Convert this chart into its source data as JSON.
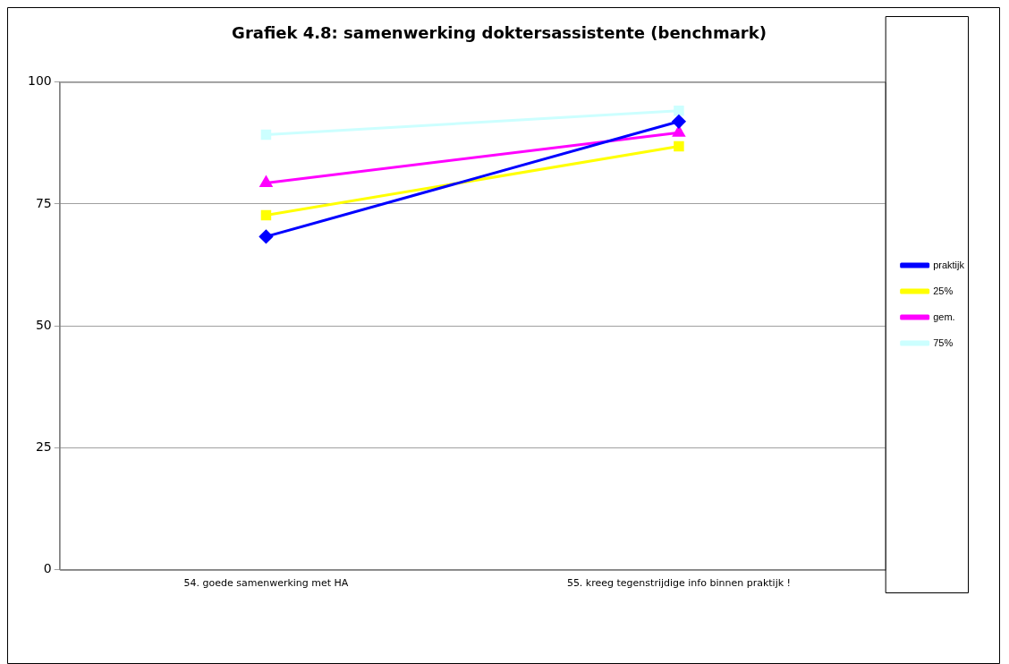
{
  "chart_data": {
    "type": "line",
    "title": "Grafiek 4.8: samenwerking doktersassistente (benchmark)",
    "categories": [
      "54. goede samenwerking met HA",
      "55. kreeg tegenstrijdige info binnen praktijk !"
    ],
    "series": [
      {
        "name": "praktijk",
        "color": "#0000ff",
        "marker": "diamond",
        "values": [
          68.3,
          91.9
        ]
      },
      {
        "name": "25%",
        "color": "#ffff00",
        "marker": "square",
        "values": [
          72.7,
          86.8
        ]
      },
      {
        "name": "gem.",
        "color": "#ff00ff",
        "marker": "triangle",
        "values": [
          79.3,
          89.6
        ]
      },
      {
        "name": "75%",
        "color": "#ccffff",
        "marker": "square",
        "values": [
          89.2,
          94.1
        ]
      }
    ],
    "ylim": [
      0,
      100
    ],
    "yticks": [
      0,
      25,
      50,
      75,
      100
    ],
    "grid": "y",
    "legend": "right"
  }
}
